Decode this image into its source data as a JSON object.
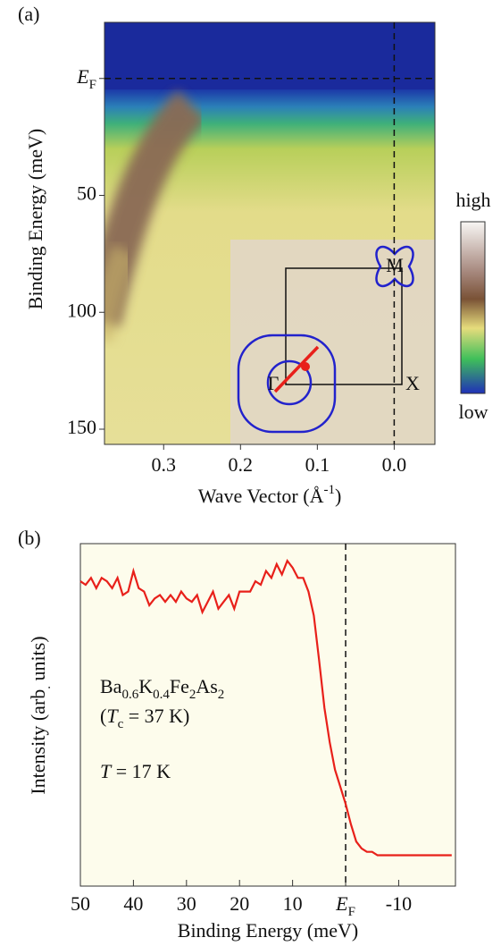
{
  "chart_data": [
    {
      "type": "intensity-map",
      "panel_label": "(a)",
      "x_label": "Wave Vector (Å-1)",
      "y_label": "Binding Energy (meV)",
      "xlim": [
        0.377,
        -0.053
      ],
      "xticks": [
        0.3,
        0.2,
        0.1,
        {
          "value": 0,
          "label": "0.0"
        }
      ],
      "ylim": [
        -24,
        156.5
      ],
      "yticks": [
        {
          "value": 0,
          "label": "EF"
        },
        50,
        100,
        150
      ],
      "colorbar_labels": [
        "high",
        "low"
      ],
      "inset_labels": [
        "Γ",
        "M",
        "X"
      ]
    },
    {
      "type": "line",
      "panel_label": "(b)",
      "x_label": "Binding Energy (meV)",
      "y_label": "Intensity (arb. units)",
      "color": "#e8201a",
      "xlim": [
        50,
        -20.7
      ],
      "xticks": [
        50,
        40,
        30,
        20,
        10,
        {
          "value": 0,
          "label": "EF"
        },
        -10
      ],
      "ylim": [
        0,
        1
      ],
      "annotations": [
        "Ba0.6K0.4Fe2As2",
        "(Tc = 37 K)",
        "T = 17 K"
      ],
      "x": [
        50,
        49,
        48,
        47,
        46,
        45,
        44,
        43,
        42,
        41,
        40,
        39,
        38,
        37,
        36,
        35,
        34,
        33,
        32,
        31,
        30,
        29,
        28,
        27,
        26,
        25,
        24,
        23,
        22,
        21,
        20,
        19,
        18,
        17,
        16,
        15,
        14,
        13,
        12,
        11,
        10,
        9,
        8,
        7,
        6,
        5,
        4,
        3,
        2,
        1,
        0,
        -1,
        -2,
        -3,
        -4,
        -5,
        -6,
        -8,
        -10,
        -12,
        -14,
        -16,
        -18,
        -20
      ],
      "values": [
        0.89,
        0.88,
        0.9,
        0.87,
        0.9,
        0.89,
        0.87,
        0.9,
        0.85,
        0.86,
        0.92,
        0.87,
        0.86,
        0.82,
        0.84,
        0.85,
        0.83,
        0.85,
        0.83,
        0.86,
        0.84,
        0.83,
        0.85,
        0.8,
        0.83,
        0.86,
        0.81,
        0.83,
        0.85,
        0.81,
        0.86,
        0.86,
        0.86,
        0.89,
        0.88,
        0.92,
        0.9,
        0.94,
        0.91,
        0.95,
        0.93,
        0.9,
        0.9,
        0.86,
        0.79,
        0.66,
        0.52,
        0.42,
        0.34,
        0.29,
        0.24,
        0.18,
        0.13,
        0.11,
        0.1,
        0.1,
        0.09,
        0.09,
        0.09,
        0.09,
        0.09,
        0.09,
        0.09,
        0.09
      ]
    }
  ]
}
